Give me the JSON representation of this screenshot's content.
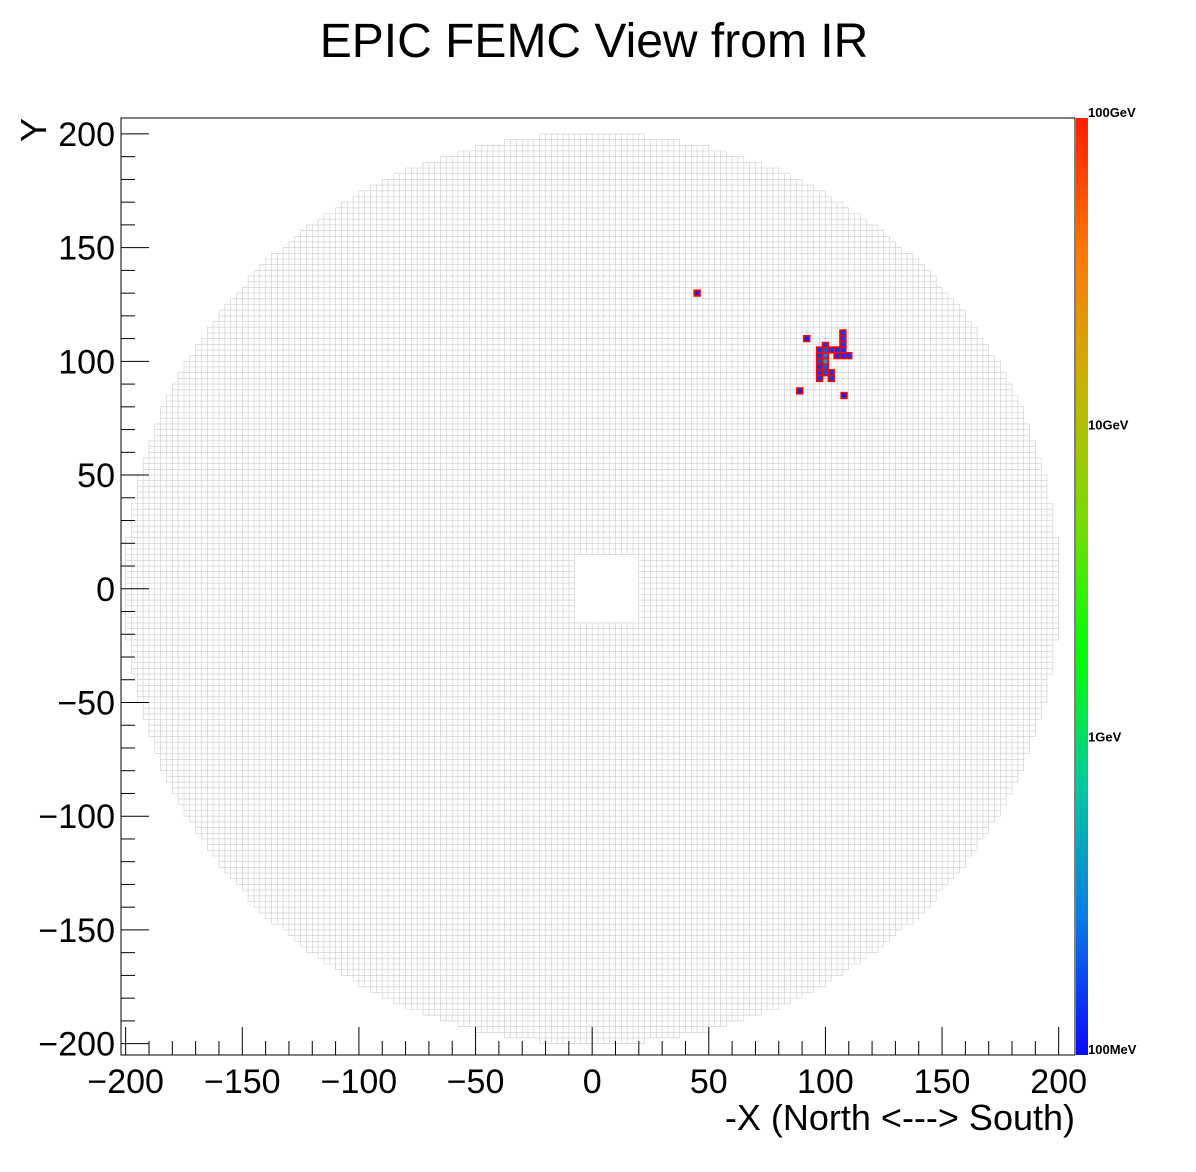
{
  "chart_data": {
    "type": "heatmap",
    "title": "EPIC FEMC View from IR",
    "xlabel": "-X (North <---> South)",
    "ylabel": "Y",
    "xlim": [
      -202,
      207
    ],
    "ylim": [
      -205,
      207
    ],
    "x_ticks": [
      -200,
      -150,
      -100,
      -50,
      0,
      50,
      100,
      150,
      200
    ],
    "x_tick_labels": [
      "−200",
      "−150",
      "−100",
      "−50",
      "0",
      "50",
      "100",
      "150",
      "200"
    ],
    "y_ticks": [
      -200,
      -150,
      -100,
      -50,
      0,
      50,
      100,
      150,
      200
    ],
    "y_tick_labels": [
      "−200",
      "−150",
      "−100",
      "−50",
      "0",
      "50",
      "100",
      "150",
      "200"
    ],
    "detector": {
      "cell_size": 2.5,
      "outer_radius": 200,
      "beam_hole": {
        "x": [
          -8,
          20
        ],
        "y": [
          -15,
          15
        ]
      },
      "grid_color": "#cccccc",
      "segment_color": "#bbbbbb"
    },
    "colorbar": {
      "scale": "log",
      "labels": [
        "100GeV",
        "10GeV",
        "1GeV",
        "100MeV"
      ],
      "label_values_gev": [
        100,
        10,
        1,
        0.1
      ],
      "gradient": [
        "#0a0aff",
        "#0a78e6",
        "#00c8a0",
        "#00ff00",
        "#78dc00",
        "#c8b400",
        "#ff7800",
        "#ff1e00"
      ]
    },
    "hits": [
      {
        "x": 45,
        "y": 130,
        "energy_gev": 0.12
      },
      {
        "x": 92,
        "y": 110,
        "energy_gev": 0.12
      },
      {
        "x": 89,
        "y": 87,
        "energy_gev": 0.13
      },
      {
        "x": 108,
        "y": 85,
        "energy_gev": 0.12
      },
      {
        "x": 100,
        "y": 107,
        "energy_gev": 0.15
      },
      {
        "x": 97.5,
        "y": 105,
        "energy_gev": 0.15
      },
      {
        "x": 100,
        "y": 105,
        "energy_gev": 0.2
      },
      {
        "x": 102.5,
        "y": 105,
        "energy_gev": 0.15
      },
      {
        "x": 97.5,
        "y": 102.5,
        "energy_gev": 0.15
      },
      {
        "x": 100,
        "y": 102.5,
        "energy_gev": 0.3
      },
      {
        "x": 97.5,
        "y": 100,
        "energy_gev": 0.18
      },
      {
        "x": 100,
        "y": 100,
        "energy_gev": 0.5
      },
      {
        "x": 100,
        "y": 97.5,
        "energy_gev": 0.2
      },
      {
        "x": 97.5,
        "y": 97.5,
        "energy_gev": 0.15
      },
      {
        "x": 97.5,
        "y": 95,
        "energy_gev": 0.15
      },
      {
        "x": 100,
        "y": 95,
        "energy_gev": 0.18
      },
      {
        "x": 102.5,
        "y": 95,
        "energy_gev": 0.15
      },
      {
        "x": 97.5,
        "y": 92.5,
        "energy_gev": 0.15
      },
      {
        "x": 102.5,
        "y": 92.5,
        "energy_gev": 0.15
      },
      {
        "x": 105,
        "y": 105,
        "energy_gev": 0.15
      },
      {
        "x": 107.5,
        "y": 107.5,
        "energy_gev": 0.15
      },
      {
        "x": 107.5,
        "y": 105,
        "energy_gev": 0.15
      },
      {
        "x": 107.5,
        "y": 110,
        "energy_gev": 0.15
      },
      {
        "x": 107.5,
        "y": 112.5,
        "energy_gev": 0.15
      },
      {
        "x": 105,
        "y": 102.5,
        "energy_gev": 0.15
      },
      {
        "x": 107.5,
        "y": 102.5,
        "energy_gev": 0.15
      },
      {
        "x": 110,
        "y": 102.5,
        "energy_gev": 0.15
      }
    ]
  }
}
